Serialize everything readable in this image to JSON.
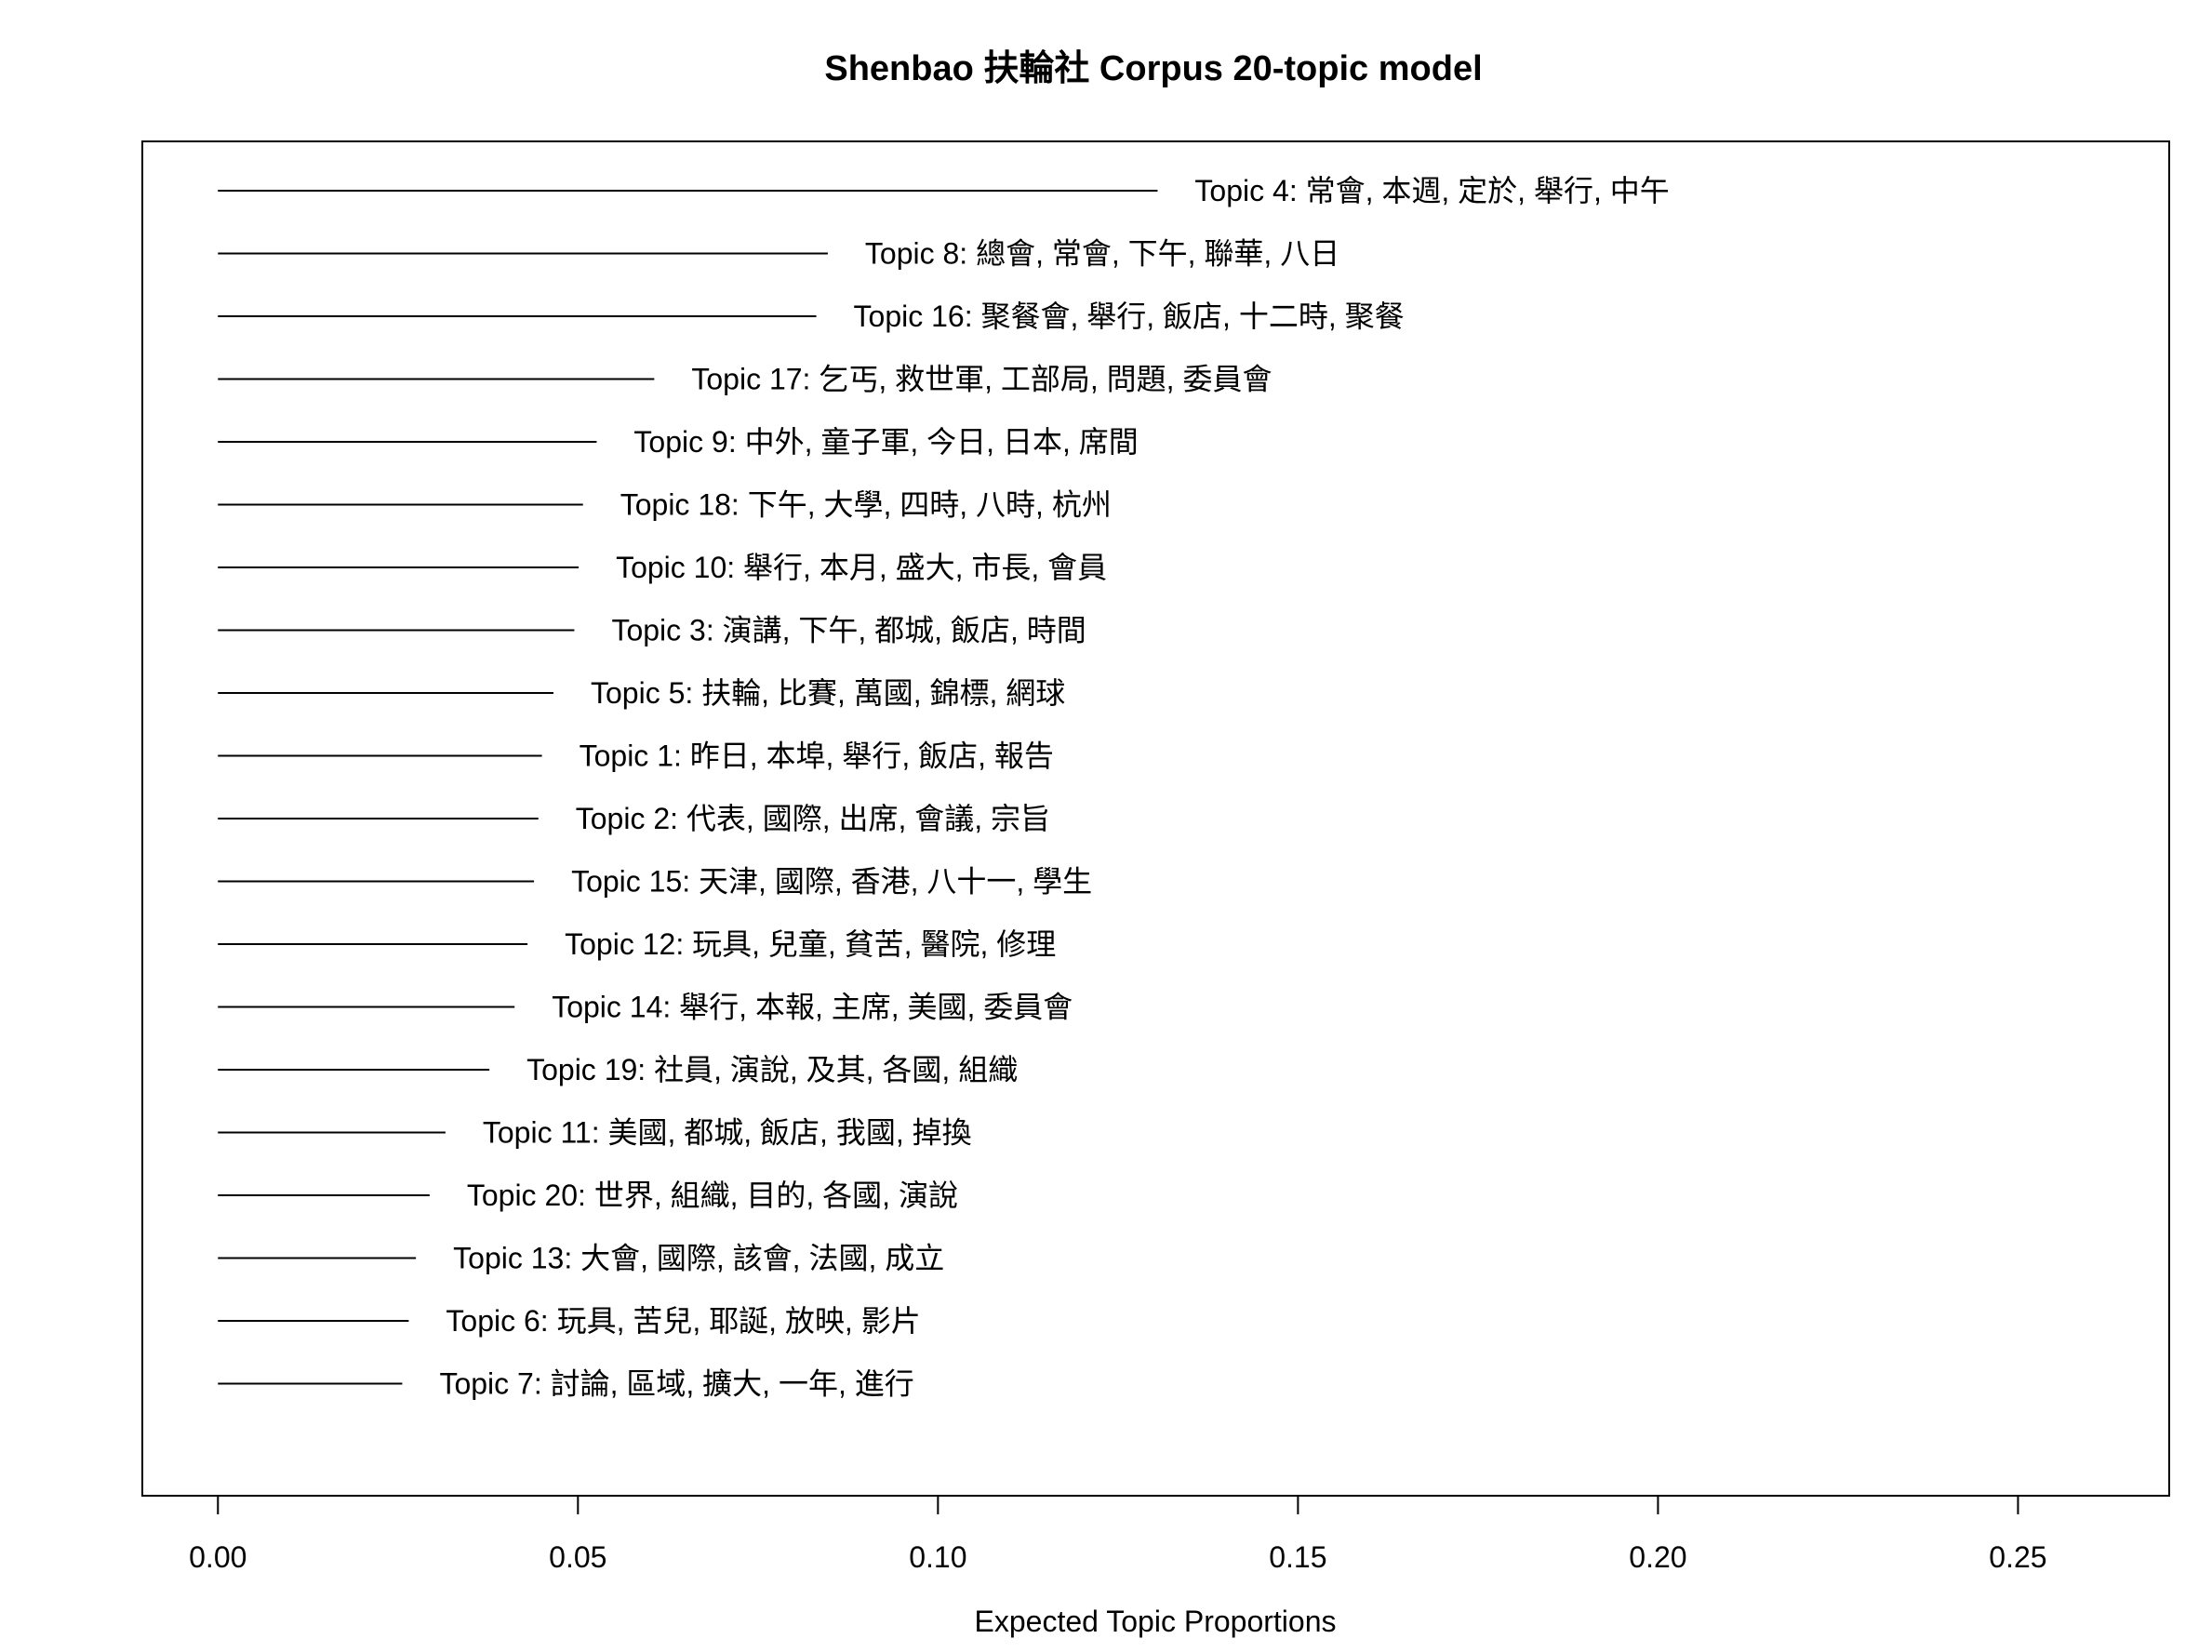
{
  "chart_data": {
    "type": "bar",
    "orientation": "horizontal",
    "title": "Shenbao 扶輪社 Corpus 20-topic model",
    "xlabel": "Expected Topic Proportions",
    "ylabel": "",
    "xlim": [
      -0.0105,
      0.271
    ],
    "xticks": [
      0,
      0.05,
      0.1,
      0.15,
      0.2,
      0.25
    ],
    "xtick_labels": [
      "0.00",
      "0.05",
      "0.10",
      "0.15",
      "0.20",
      "0.25"
    ],
    "grid": false,
    "legend": "none",
    "bar_color": "#000000",
    "categories": [
      "Topic 4: 常會, 本週, 定於, 舉行, 中午",
      "Topic 8: 總會, 常會, 下午, 聯華, 八日",
      "Topic 16: 聚餐會, 舉行, 飯店, 十二時, 聚餐",
      "Topic 17: 乞丐, 救世軍, 工部局, 問題, 委員會",
      "Topic 9: 中外, 童子軍, 今日, 日本, 席間",
      "Topic 18: 下午, 大學, 四時, 八時, 杭州",
      "Topic 10: 舉行, 本月, 盛大, 市長, 會員",
      "Topic 3: 演講, 下午, 都城, 飯店, 時間",
      "Topic 5: 扶輪, 比賽, 萬國, 錦標, 網球",
      "Topic 1: 昨日, 本埠, 舉行, 飯店, 報告",
      "Topic 2: 代表, 國際, 出席, 會議, 宗旨",
      "Topic 15: 天津, 國際, 香港, 八十一, 學生",
      "Topic 12: 玩具, 兒童, 貧苦, 醫院, 修理",
      "Topic 14: 舉行, 本報, 主席, 美國, 委員會",
      "Topic 19: 社員, 演說, 及其, 各國, 組織",
      "Topic 11: 美國, 都城, 飯店, 我國, 掉換",
      "Topic 20: 世界, 組織, 目的, 各國, 演說",
      "Topic 13: 大會, 國際, 該會, 法國, 成立",
      "Topic 6: 玩具, 苦兒, 耶誕, 放映, 影片",
      "Topic 7: 討論, 區域, 擴大, 一年, 進行"
    ],
    "values": [
      0.1305,
      0.0847,
      0.0831,
      0.0606,
      0.0526,
      0.0507,
      0.0501,
      0.0495,
      0.0466,
      0.045,
      0.0445,
      0.0439,
      0.043,
      0.0412,
      0.0377,
      0.0316,
      0.0294,
      0.0275,
      0.0265,
      0.0256
    ]
  }
}
